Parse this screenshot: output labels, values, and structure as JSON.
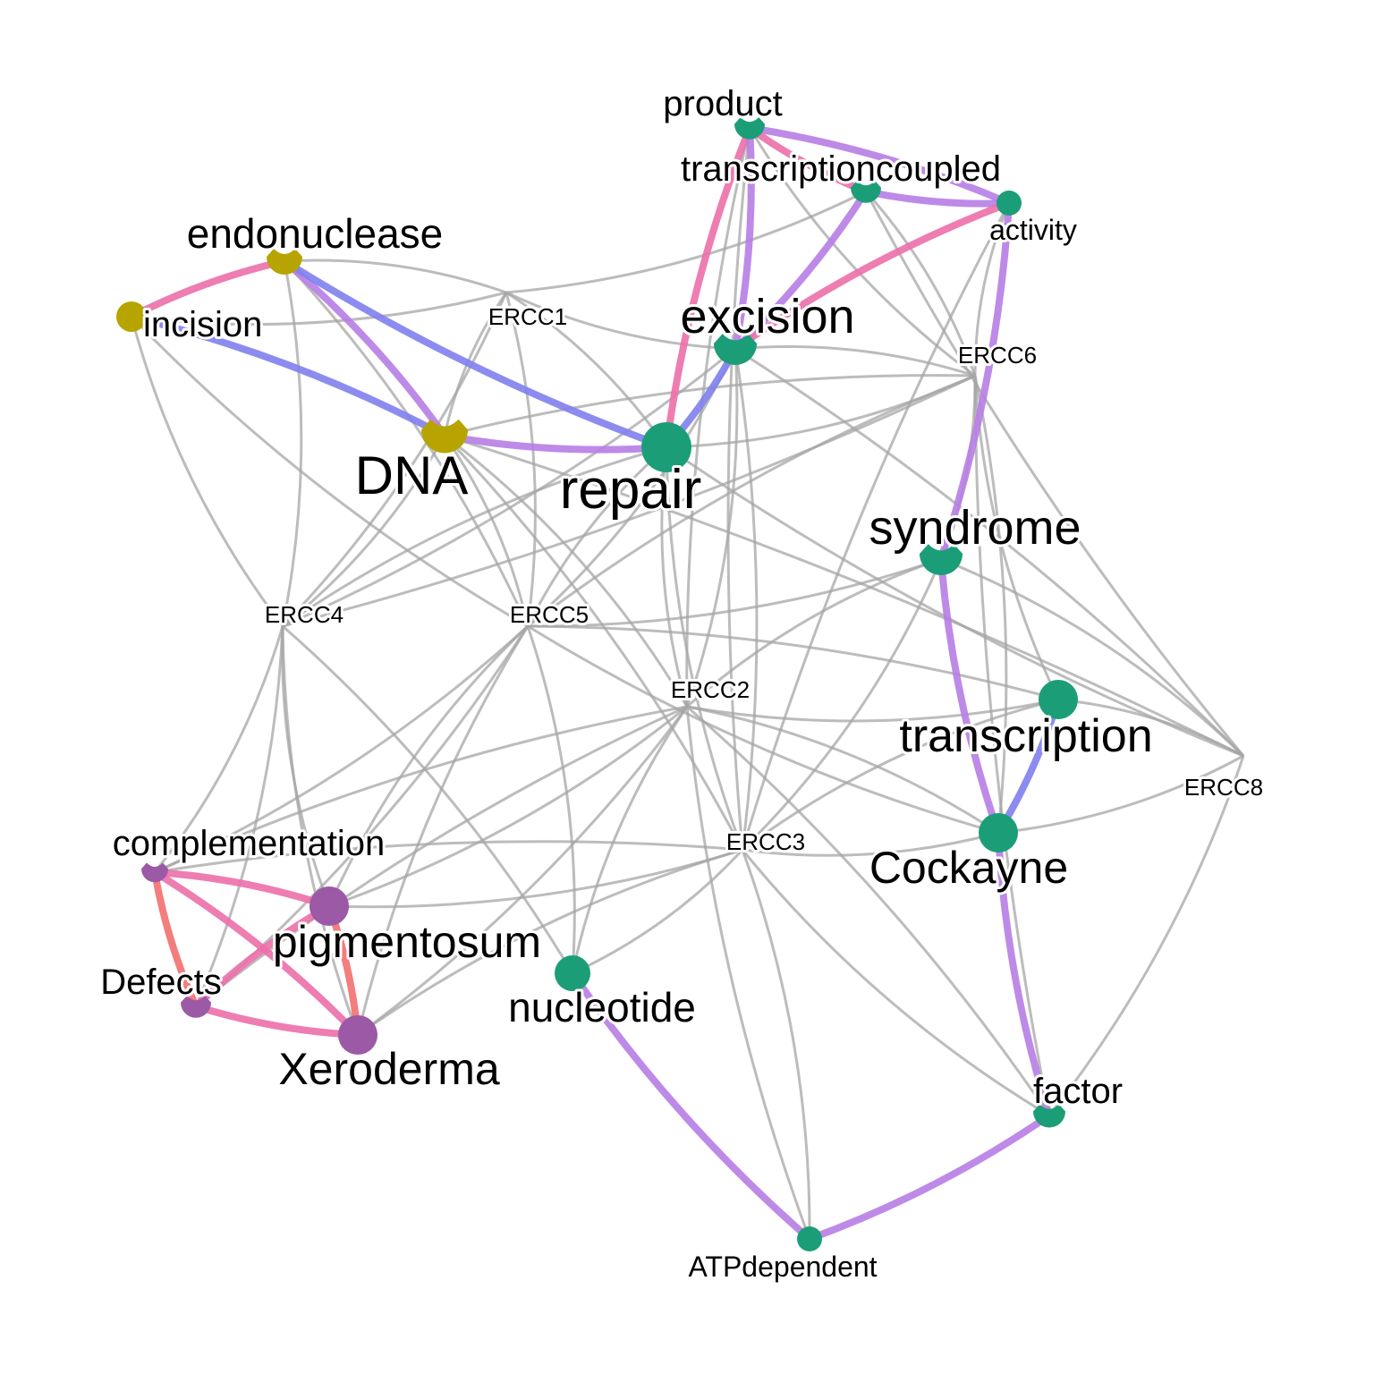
{
  "diagram": {
    "type": "network",
    "colors": {
      "gene_edge": "#a6a6a6",
      "community_green": "#1b9e77",
      "community_olive": "#b8a400",
      "community_purple": "#9b59a6",
      "edge_pink": "#ec6fa8",
      "edge_violet": "#b77de6",
      "edge_blue": "#7f7fee",
      "edge_salmon": "#f36f6f"
    },
    "nodes": [
      {
        "id": "product",
        "label": "product",
        "kind": "term",
        "group": "green"
      },
      {
        "id": "transcriptioncoupled",
        "label": "transcriptioncoupled",
        "kind": "term",
        "group": "green"
      },
      {
        "id": "activity",
        "label": "activity",
        "kind": "term",
        "group": "green"
      },
      {
        "id": "endonuclease",
        "label": "endonuclease",
        "kind": "term",
        "group": "olive"
      },
      {
        "id": "incision",
        "label": "incision",
        "kind": "term",
        "group": "olive"
      },
      {
        "id": "DNA",
        "label": "DNA",
        "kind": "term",
        "group": "olive"
      },
      {
        "id": "excision",
        "label": "excision",
        "kind": "term",
        "group": "green"
      },
      {
        "id": "repair",
        "label": "repair",
        "kind": "term",
        "group": "green"
      },
      {
        "id": "syndrome",
        "label": "syndrome",
        "kind": "term",
        "group": "green"
      },
      {
        "id": "transcription",
        "label": "transcription",
        "kind": "term",
        "group": "green"
      },
      {
        "id": "Cockayne",
        "label": "Cockayne",
        "kind": "term",
        "group": "green"
      },
      {
        "id": "factor",
        "label": "factor",
        "kind": "term",
        "group": "green"
      },
      {
        "id": "ATPdependent",
        "label": "ATPdependent",
        "kind": "term",
        "group": "green"
      },
      {
        "id": "nucleotide",
        "label": "nucleotide",
        "kind": "term",
        "group": "green"
      },
      {
        "id": "complementation",
        "label": "complementation",
        "kind": "term",
        "group": "purple"
      },
      {
        "id": "pigmentosum",
        "label": "pigmentosum",
        "kind": "term",
        "group": "purple"
      },
      {
        "id": "Defects",
        "label": "Defects",
        "kind": "term",
        "group": "purple"
      },
      {
        "id": "Xeroderma",
        "label": "Xeroderma",
        "kind": "term",
        "group": "purple"
      },
      {
        "id": "ERCC1",
        "label": "ERCC1",
        "kind": "gene"
      },
      {
        "id": "ERCC6",
        "label": "ERCC6",
        "kind": "gene"
      },
      {
        "id": "ERCC4",
        "label": "ERCC4",
        "kind": "gene"
      },
      {
        "id": "ERCC5",
        "label": "ERCC5",
        "kind": "gene"
      },
      {
        "id": "ERCC2",
        "label": "ERCC2",
        "kind": "gene"
      },
      {
        "id": "ERCC8",
        "label": "ERCC8",
        "kind": "gene"
      },
      {
        "id": "ERCC3",
        "label": "ERCC3",
        "kind": "gene"
      }
    ],
    "term_edges": [
      {
        "from": "product",
        "to": "transcriptioncoupled",
        "color": "pink"
      },
      {
        "from": "product",
        "to": "activity",
        "color": "violet"
      },
      {
        "from": "product",
        "to": "repair",
        "color": "pink"
      },
      {
        "from": "product",
        "to": "excision",
        "color": "violet"
      },
      {
        "from": "transcriptioncoupled",
        "to": "activity",
        "color": "violet"
      },
      {
        "from": "transcriptioncoupled",
        "to": "excision",
        "color": "violet"
      },
      {
        "from": "activity",
        "to": "excision",
        "color": "pink"
      },
      {
        "from": "activity",
        "to": "syndrome",
        "color": "violet"
      },
      {
        "from": "endonuclease",
        "to": "incision",
        "color": "pink"
      },
      {
        "from": "endonuclease",
        "to": "DNA",
        "color": "violet"
      },
      {
        "from": "endonuclease",
        "to": "repair",
        "color": "blue"
      },
      {
        "from": "incision",
        "to": "DNA",
        "color": "blue"
      },
      {
        "from": "DNA",
        "to": "repair",
        "color": "violet"
      },
      {
        "from": "excision",
        "to": "repair",
        "color": "blue"
      },
      {
        "from": "syndrome",
        "to": "Cockayne",
        "color": "violet"
      },
      {
        "from": "transcription",
        "to": "Cockayne",
        "color": "blue"
      },
      {
        "from": "Cockayne",
        "to": "factor",
        "color": "violet"
      },
      {
        "from": "factor",
        "to": "ATPdependent",
        "color": "violet"
      },
      {
        "from": "nucleotide",
        "to": "ATPdependent",
        "color": "violet"
      },
      {
        "from": "complementation",
        "to": "pigmentosum",
        "color": "pink"
      },
      {
        "from": "complementation",
        "to": "Defects",
        "color": "salmon"
      },
      {
        "from": "complementation",
        "to": "Xeroderma",
        "color": "pink"
      },
      {
        "from": "pigmentosum",
        "to": "Defects",
        "color": "pink"
      },
      {
        "from": "pigmentosum",
        "to": "Xeroderma",
        "color": "salmon"
      },
      {
        "from": "Defects",
        "to": "Xeroderma",
        "color": "pink"
      }
    ],
    "gene_edges": [
      {
        "gene": "ERCC1",
        "terms": [
          "endonuclease",
          "incision",
          "DNA",
          "repair",
          "excision",
          "ERCC4",
          "transcriptioncoupled",
          "ERCC5"
        ]
      },
      {
        "gene": "ERCC6",
        "terms": [
          "transcriptioncoupled",
          "activity",
          "excision",
          "repair",
          "DNA",
          "syndrome",
          "transcription",
          "Cockayne",
          "factor",
          "ERCC4",
          "ERCC5",
          "product"
        ]
      },
      {
        "gene": "ERCC4",
        "terms": [
          "endonuclease",
          "incision",
          "DNA",
          "repair",
          "excision",
          "complementation",
          "pigmentosum",
          "Defects",
          "Xeroderma",
          "nucleotide"
        ]
      },
      {
        "gene": "ERCC5",
        "terms": [
          "endonuclease",
          "incision",
          "DNA",
          "repair",
          "excision",
          "complementation",
          "pigmentosum",
          "Defects",
          "Xeroderma",
          "nucleotide",
          "syndrome",
          "transcription",
          "Cockayne"
        ]
      },
      {
        "gene": "ERCC2",
        "terms": [
          "DNA",
          "repair",
          "excision",
          "product",
          "complementation",
          "pigmentosum",
          "Defects",
          "Xeroderma",
          "nucleotide",
          "syndrome",
          "transcription",
          "Cockayne",
          "ATPdependent",
          "factor"
        ]
      },
      {
        "gene": "ERCC8",
        "terms": [
          "transcription",
          "Cockayne",
          "syndrome",
          "repair",
          "DNA",
          "factor",
          "excision",
          "transcriptioncoupled"
        ]
      },
      {
        "gene": "ERCC3",
        "terms": [
          "DNA",
          "repair",
          "excision",
          "product",
          "complementation",
          "pigmentosum",
          "Xeroderma",
          "nucleotide",
          "syndrome",
          "transcription",
          "Cockayne",
          "ATPdependent",
          "factor",
          "activity"
        ]
      }
    ]
  }
}
